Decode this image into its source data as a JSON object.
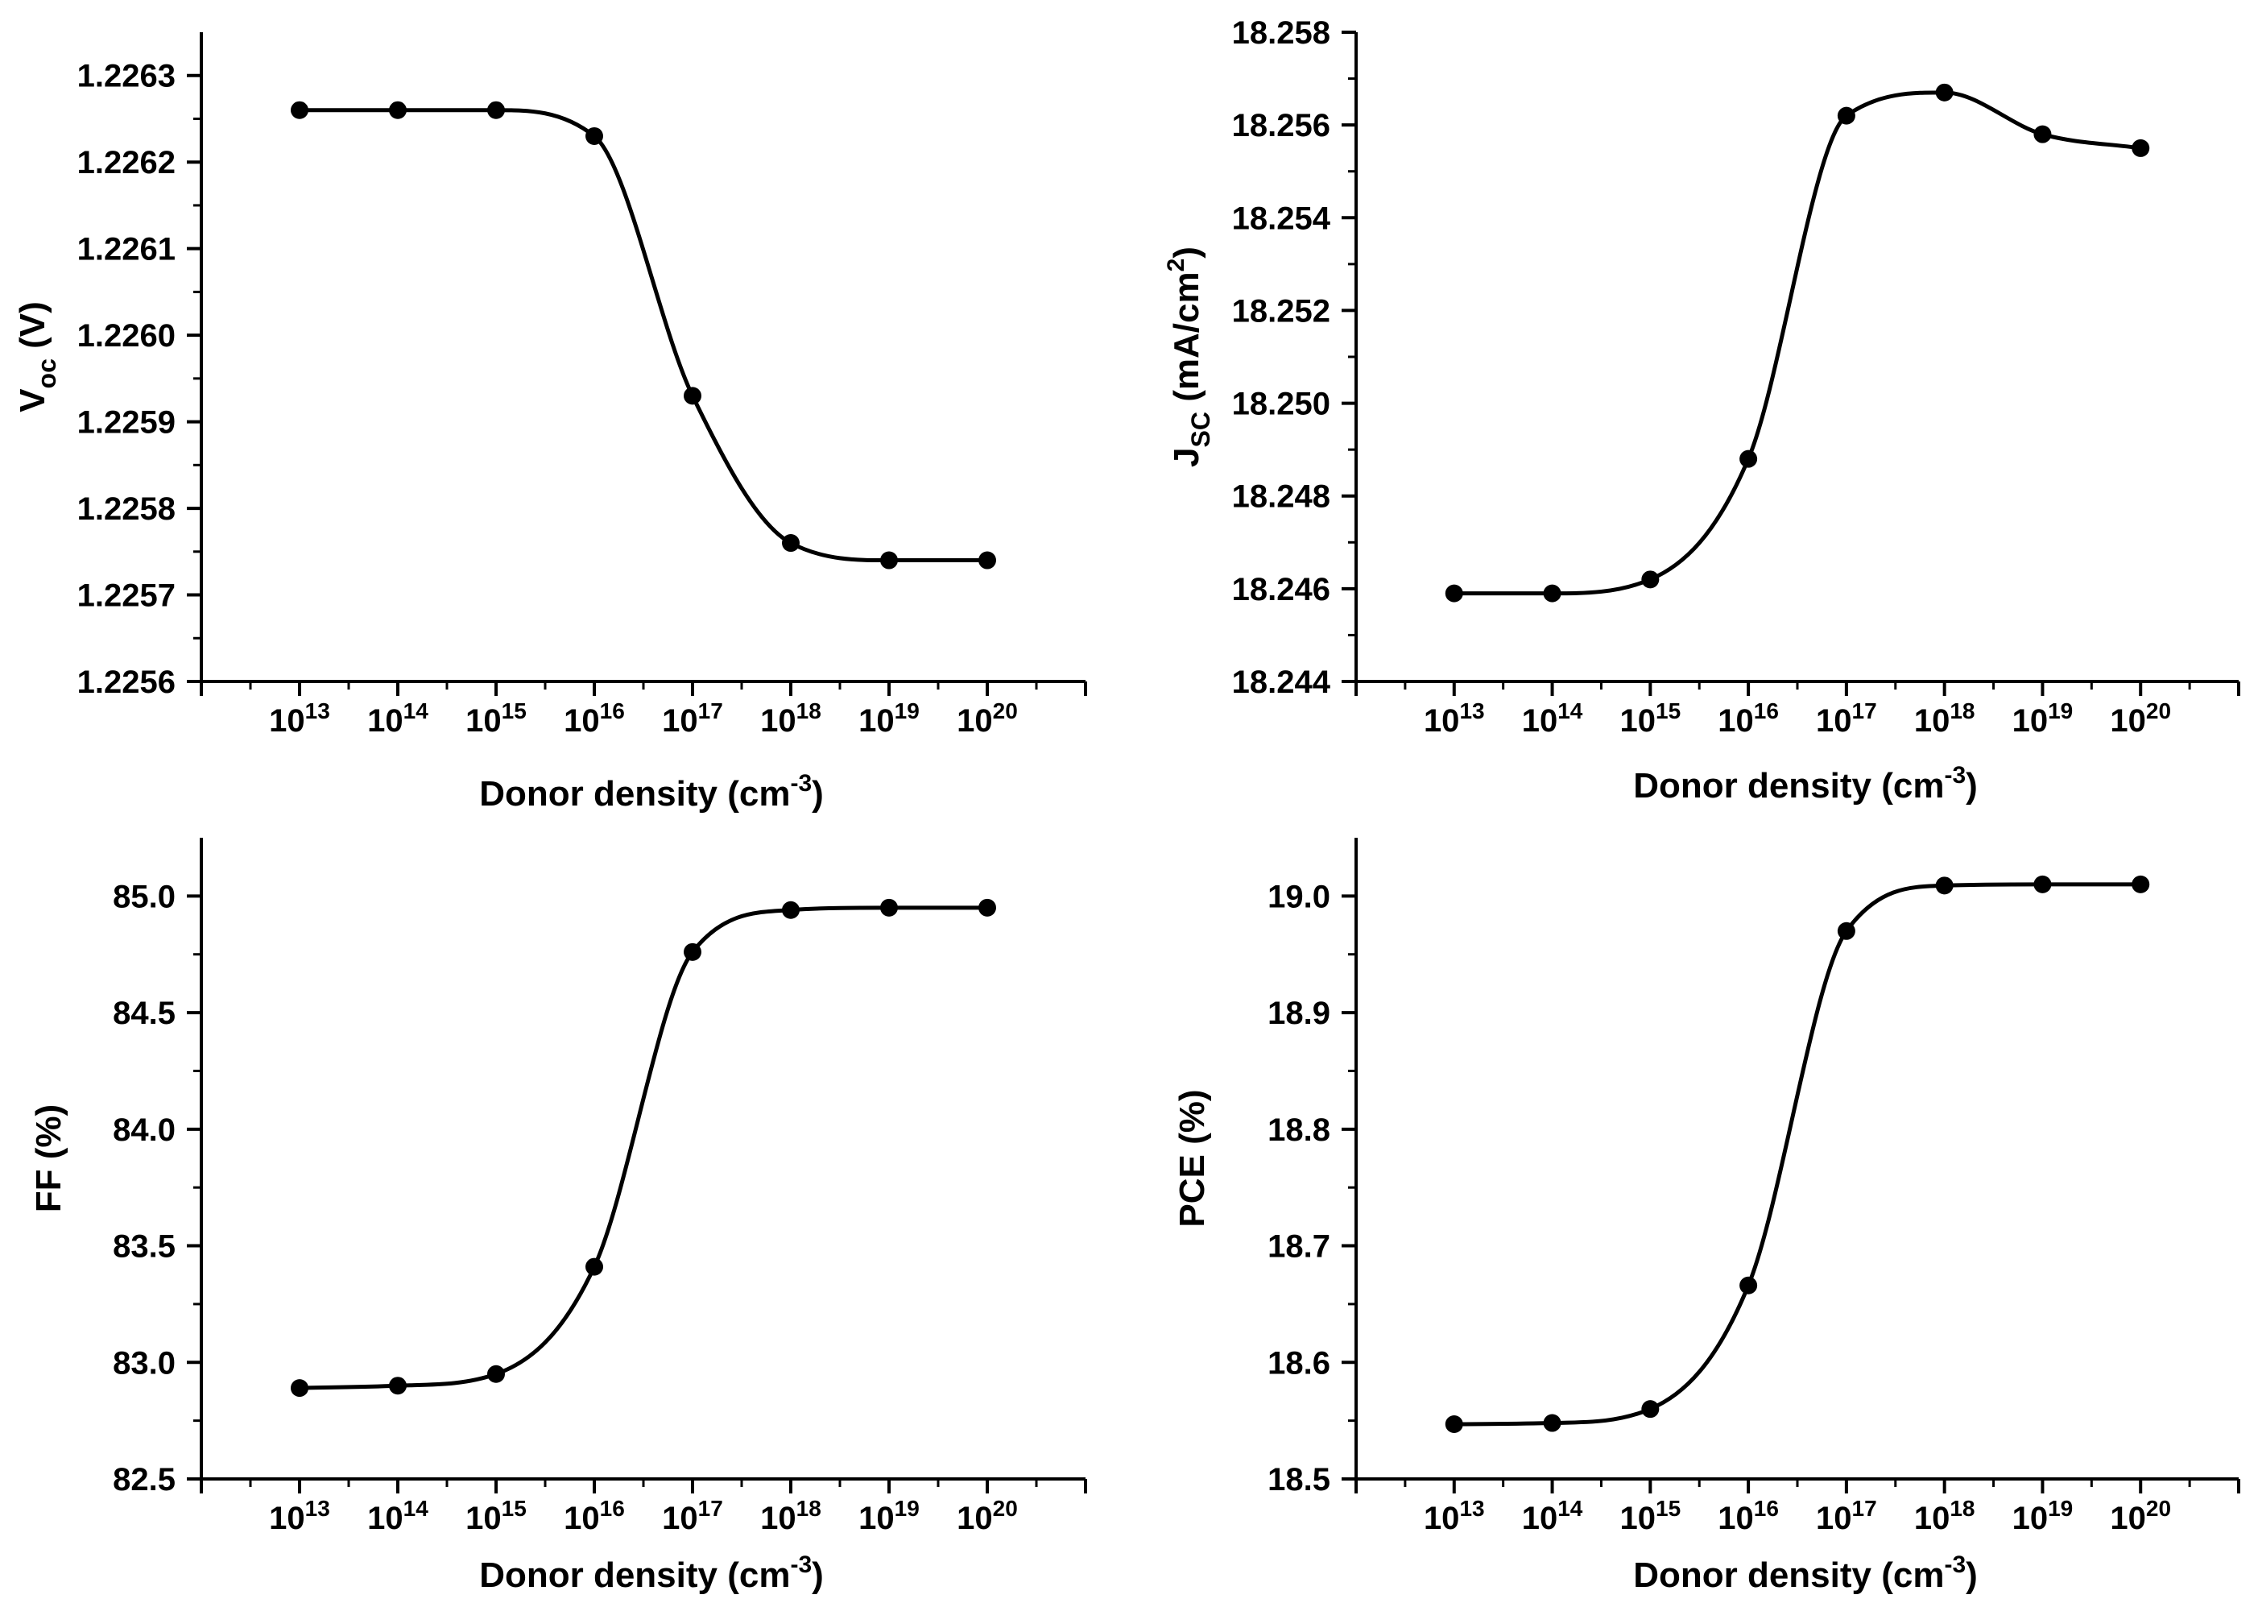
{
  "chart_data": [
    {
      "id": "voc",
      "type": "line",
      "ylabel": {
        "main": "V",
        "sub": "oc",
        "rest": " (V)"
      },
      "xlabel": {
        "main": "Donor density (cm",
        "sup": "-3",
        "end": ")"
      },
      "x_exponents": [
        13,
        14,
        15,
        16,
        17,
        18,
        19,
        20
      ],
      "x_tick_labels": [
        {
          "base": "10",
          "exp": "13"
        },
        {
          "base": "10",
          "exp": "14"
        },
        {
          "base": "10",
          "exp": "15"
        },
        {
          "base": "10",
          "exp": "16"
        },
        {
          "base": "10",
          "exp": "17"
        },
        {
          "base": "10",
          "exp": "18"
        },
        {
          "base": "10",
          "exp": "19"
        },
        {
          "base": "10",
          "exp": "20"
        }
      ],
      "y_values": [
        1.22626,
        1.22626,
        1.22626,
        1.22623,
        1.22593,
        1.22576,
        1.22574,
        1.22574
      ],
      "ylim": [
        1.2256,
        1.22635
      ],
      "y_ticks": [
        "1.2256",
        "1.2257",
        "1.2258",
        "1.2259",
        "1.2260",
        "1.2261",
        "1.2262",
        "1.2263"
      ]
    },
    {
      "id": "jsc",
      "type": "line",
      "ylabel": {
        "main": "J",
        "sub": "SC",
        "rest": " (mA/cm",
        "sup": "2",
        "end": ")"
      },
      "xlabel": {
        "main": "Donor density (cm",
        "sup": "-3",
        "end": ")"
      },
      "x_exponents": [
        13,
        14,
        15,
        16,
        17,
        18,
        19,
        20
      ],
      "x_tick_labels": [
        {
          "base": "10",
          "exp": "13"
        },
        {
          "base": "10",
          "exp": "14"
        },
        {
          "base": "10",
          "exp": "15"
        },
        {
          "base": "10",
          "exp": "16"
        },
        {
          "base": "10",
          "exp": "17"
        },
        {
          "base": "10",
          "exp": "18"
        },
        {
          "base": "10",
          "exp": "19"
        },
        {
          "base": "10",
          "exp": "20"
        }
      ],
      "y_values": [
        18.2459,
        18.2459,
        18.2462,
        18.2488,
        18.2562,
        18.2567,
        18.2558,
        18.2555
      ],
      "ylim": [
        18.244,
        18.258
      ],
      "y_ticks": [
        "18.244",
        "18.246",
        "18.248",
        "18.250",
        "18.252",
        "18.254",
        "18.256",
        "18.258"
      ]
    },
    {
      "id": "ff",
      "type": "line",
      "ylabel": {
        "main": "FF (%)"
      },
      "xlabel": {
        "main": "Donor density (cm",
        "sup": "-3",
        "end": ")"
      },
      "x_exponents": [
        13,
        14,
        15,
        16,
        17,
        18,
        19,
        20
      ],
      "x_tick_labels": [
        {
          "base": "10",
          "exp": "13"
        },
        {
          "base": "10",
          "exp": "14"
        },
        {
          "base": "10",
          "exp": "15"
        },
        {
          "base": "10",
          "exp": "16"
        },
        {
          "base": "10",
          "exp": "17"
        },
        {
          "base": "10",
          "exp": "18"
        },
        {
          "base": "10",
          "exp": "19"
        },
        {
          "base": "10",
          "exp": "20"
        }
      ],
      "y_values": [
        82.89,
        82.9,
        82.95,
        83.41,
        84.76,
        84.94,
        84.95,
        84.95
      ],
      "ylim": [
        82.5,
        85.25
      ],
      "y_ticks": [
        "82.5",
        "83.0",
        "83.5",
        "84.0",
        "84.5",
        "85.0"
      ]
    },
    {
      "id": "pce",
      "type": "line",
      "ylabel": {
        "main": "PCE (%)"
      },
      "xlabel": {
        "main": "Donor density (cm",
        "sup": "-3",
        "end": ")"
      },
      "x_exponents": [
        13,
        14,
        15,
        16,
        17,
        18,
        19,
        20
      ],
      "x_tick_labels": [
        {
          "base": "10",
          "exp": "13"
        },
        {
          "base": "10",
          "exp": "14"
        },
        {
          "base": "10",
          "exp": "15"
        },
        {
          "base": "10",
          "exp": "16"
        },
        {
          "base": "10",
          "exp": "17"
        },
        {
          "base": "10",
          "exp": "18"
        },
        {
          "base": "10",
          "exp": "19"
        },
        {
          "base": "10",
          "exp": "20"
        }
      ],
      "y_values": [
        18.547,
        18.548,
        18.56,
        18.666,
        18.97,
        19.009,
        19.01,
        19.01
      ],
      "ylim": [
        18.5,
        19.05
      ],
      "y_ticks": [
        "18.5",
        "18.6",
        "18.7",
        "18.8",
        "18.9",
        "19.0"
      ]
    }
  ]
}
